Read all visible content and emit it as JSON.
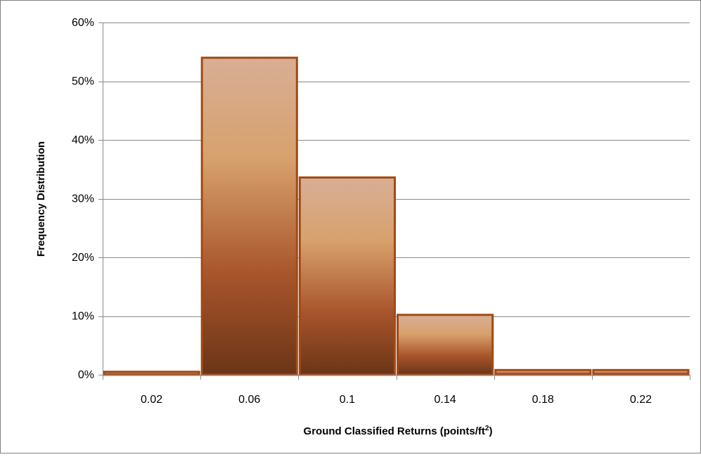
{
  "chart_data": {
    "type": "bar",
    "title": "",
    "xlabel": "Ground Classified  Returns (points/ft",
    "xlabel_superscript": "2",
    "xlabel_suffix": ")",
    "ylabel": "Frequency Distribution",
    "categories": [
      "0.02",
      "0.06",
      "0.1",
      "0.14",
      "0.18",
      "0.22"
    ],
    "values": [
      0.5,
      54,
      33.6,
      10.2,
      0.8,
      0.8
    ],
    "value_unit": "%",
    "ylim": [
      0,
      60
    ],
    "yticks": [
      0,
      10,
      20,
      30,
      40,
      50,
      60
    ],
    "ytick_labels": [
      "0%",
      "10%",
      "20%",
      "30%",
      "40%",
      "50%",
      "60%"
    ],
    "grid": true,
    "legend": "none",
    "bar_gap": "none",
    "colors": {
      "bar_top": "#d8ae95",
      "bar_mid_light": "#d7a16c",
      "bar_mid": "#a9552c",
      "bar_bottom": "#6b3517",
      "bar_edge": "#a24a14",
      "grid": "#8a8a8a",
      "axis": "#8a8a8a",
      "frame": "#808080"
    }
  }
}
